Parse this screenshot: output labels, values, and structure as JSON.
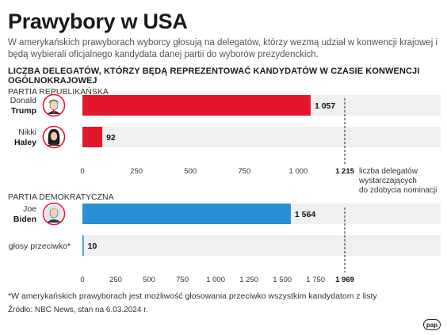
{
  "title": "Prawybory w USA",
  "subtitle": "W amerykańskich prawyborach wyborcy głosują na delegatów, którzy wezmą udział w konwencji krajowej i będą wybierali oficjalnego kandydata danej partii do wyborów prezydenckich.",
  "chart_heading": "LICZBA DELEGATÓW, KTÓRZY BĘDĄ REPREZENTOWAĆ KANDYDATÓW W CZASIE KONWENCJI OGÓLNOKRAJOWEJ",
  "footnote": "*W amerykańskich prawyborach jest możliwość głosowania przeciwko wszystkim kandydatom z listy",
  "source": "Źródło: NBC News, stan na 6.03.2024 r.",
  "logo_text": "pap",
  "chart_data": [
    {
      "type": "bar",
      "orientation": "horizontal",
      "section_label": "PARTIA REPUBLIKAŃSKA",
      "bar_color": "#e3162c",
      "threshold": 1215,
      "threshold_label": "1 215",
      "threshold_note": [
        "liczba delegatów",
        "wystarczających",
        "do zdobycia nominacji"
      ],
      "xlim": [
        0,
        1215
      ],
      "ticks": [
        0,
        250,
        500,
        750,
        1000
      ],
      "tick_labels": [
        "0",
        "250",
        "500",
        "750",
        "1 000"
      ],
      "bars": [
        {
          "first": "Donald",
          "last": "Trump",
          "value": 1057,
          "value_label": "1 057",
          "icon": "trump-portrait-icon"
        },
        {
          "first": "Nikki",
          "last": "Haley",
          "value": 92,
          "value_label": "92",
          "icon": "haley-portrait-icon"
        }
      ]
    },
    {
      "type": "bar",
      "orientation": "horizontal",
      "section_label": "PARTIA DEMOKRATYCZNA",
      "bar_color": "#2a8fd4",
      "threshold": 1969,
      "threshold_label": "1 969",
      "xlim": [
        0,
        1969
      ],
      "ticks": [
        0,
        250,
        500,
        750,
        1000,
        1250,
        1500,
        1750
      ],
      "tick_labels": [
        "0",
        "250",
        "500",
        "750",
        "1 000",
        "1 250",
        "1 500",
        "1 750"
      ],
      "bars": [
        {
          "first": "Joe",
          "last": "Biden",
          "value": 1564,
          "value_label": "1 564",
          "icon": "biden-portrait-icon"
        },
        {
          "label": "głosy przeciwko*",
          "value": 10,
          "value_label": "10"
        }
      ]
    }
  ]
}
